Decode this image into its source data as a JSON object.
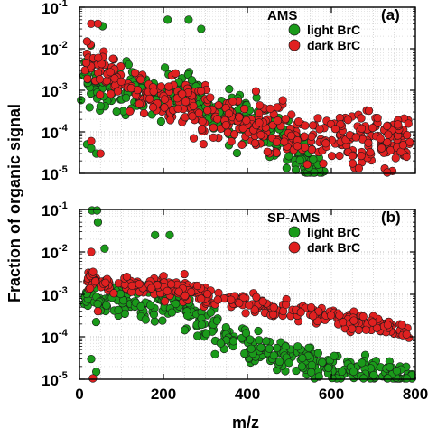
{
  "chart_data": [
    {
      "type": "scatter",
      "panel_label": "(a)",
      "legend_title": "AMS",
      "legend_placement": "top-right",
      "xlabel": "m/z",
      "ylabel": "Fraction of organic signal",
      "xlim": [
        0,
        800
      ],
      "ylim": [
        1e-05,
        0.1
      ],
      "yscale": "log",
      "grid": true,
      "y_tick_labels": [
        {
          "base": "10",
          "exp": "-1",
          "value": 0.1
        },
        {
          "base": "10",
          "exp": "-2",
          "value": 0.01
        },
        {
          "base": "10",
          "exp": "-3",
          "value": 0.001
        },
        {
          "base": "10",
          "exp": "-4",
          "value": 0.0001
        },
        {
          "base": "10",
          "exp": "-5",
          "value": 1e-05
        }
      ],
      "series": [
        {
          "name": "light BrC",
          "color": "#1a9a1a",
          "trend": {
            "x": [
              12,
              60,
              120,
              180,
              240,
              300,
              360,
              420,
              480,
              530,
              580
            ],
            "logy": [
              -2.9,
              -2.95,
              -3.05,
              -3.1,
              -3.05,
              -3.3,
              -3.55,
              -3.8,
              -4.2,
              -4.6,
              -4.9
            ],
            "spread": 0.55,
            "n": 330,
            "xjitter": 6
          },
          "points": [
            {
              "x": 18,
              "y": 5e-05
            },
            {
              "x": 28,
              "y": 4e-05
            },
            {
              "x": 40,
              "y": 3e-05
            },
            {
              "x": 55,
              "y": 0.035
            },
            {
              "x": 27,
              "y": 0.012
            },
            {
              "x": 150,
              "y": 0.002
            },
            {
              "x": 210,
              "y": 0.05
            },
            {
              "x": 260,
              "y": 0.05
            },
            {
              "x": 290,
              "y": 0.03
            }
          ]
        },
        {
          "name": "dark BrC",
          "color": "#e02020",
          "trend": {
            "x": [
              12,
              60,
              120,
              180,
              240,
              300,
              360,
              420,
              480,
              540,
              600,
              660,
              720,
              790
            ],
            "logy": [
              -2.2,
              -2.55,
              -2.95,
              -3.2,
              -3.3,
              -3.55,
              -3.75,
              -3.85,
              -4.0,
              -4.05,
              -4.1,
              -4.2,
              -4.25,
              -4.3
            ],
            "spread": 0.6,
            "n": 420,
            "xjitter": 6
          },
          "points": [
            {
              "x": 28,
              "y": 0.04
            },
            {
              "x": 44,
              "y": 0.04
            },
            {
              "x": 18,
              "y": 0.015
            },
            {
              "x": 50,
              "y": 3e-05
            },
            {
              "x": 28,
              "y": 6e-05
            }
          ]
        }
      ]
    },
    {
      "type": "scatter",
      "panel_label": "(b)",
      "legend_title": "SP-AMS",
      "legend_placement": "top-right",
      "xlabel": "m/z",
      "ylabel": "Fraction of organic signal",
      "xlim": [
        0,
        800
      ],
      "ylim": [
        1e-05,
        0.1
      ],
      "yscale": "log",
      "grid": true,
      "x_ticks": [
        0,
        200,
        400,
        600,
        800
      ],
      "x_tick_labels": [
        "0",
        "200",
        "400",
        "600",
        "800"
      ],
      "y_tick_labels": [
        {
          "base": "10",
          "exp": "-1",
          "value": 0.1
        },
        {
          "base": "10",
          "exp": "-2",
          "value": 0.01
        },
        {
          "base": "10",
          "exp": "-3",
          "value": 0.001
        },
        {
          "base": "10",
          "exp": "-4",
          "value": 0.0001
        },
        {
          "base": "10",
          "exp": "-5",
          "value": 1e-05
        }
      ],
      "series": [
        {
          "name": "light BrC",
          "color": "#1a9a1a",
          "trend": {
            "x": [
              12,
              60,
              120,
              180,
              230,
              280,
              330,
              380,
              430,
              480,
              540,
              600,
              660,
              720,
              790
            ],
            "logy": [
              -3.05,
              -3.1,
              -3.2,
              -3.15,
              -3.2,
              -3.55,
              -3.85,
              -4.1,
              -4.3,
              -4.45,
              -4.6,
              -4.7,
              -4.8,
              -4.9,
              -4.95
            ],
            "spread": 0.4,
            "n": 380,
            "xjitter": 5
          },
          "points": [
            {
              "x": 30,
              "y": 0.15
            },
            {
              "x": 42,
              "y": 0.15
            },
            {
              "x": 44,
              "y": 0.05
            },
            {
              "x": 28,
              "y": 3e-05
            },
            {
              "x": 40,
              "y": 1.5e-05
            },
            {
              "x": 60,
              "y": 0.012
            },
            {
              "x": 180,
              "y": 0.025
            },
            {
              "x": 215,
              "y": 0.025
            }
          ]
        },
        {
          "name": "dark BrC",
          "color": "#e02020",
          "trend": {
            "x": [
              12,
              60,
              120,
              180,
              240,
              300,
              360,
              420,
              480,
              540,
              600,
              660,
              720,
              790
            ],
            "logy": [
              -2.6,
              -2.75,
              -2.8,
              -2.8,
              -2.9,
              -3.0,
              -3.1,
              -3.25,
              -3.35,
              -3.45,
              -3.55,
              -3.65,
              -3.75,
              -3.9
            ],
            "spread": 0.2,
            "n": 330,
            "xjitter": 5
          },
          "points": [
            {
              "x": 28,
              "y": 0.01
            },
            {
              "x": 44,
              "y": 0.0004
            },
            {
              "x": 32,
              "y": 1e-05
            },
            {
              "x": 250,
              "y": 0.003
            }
          ]
        }
      ]
    }
  ]
}
